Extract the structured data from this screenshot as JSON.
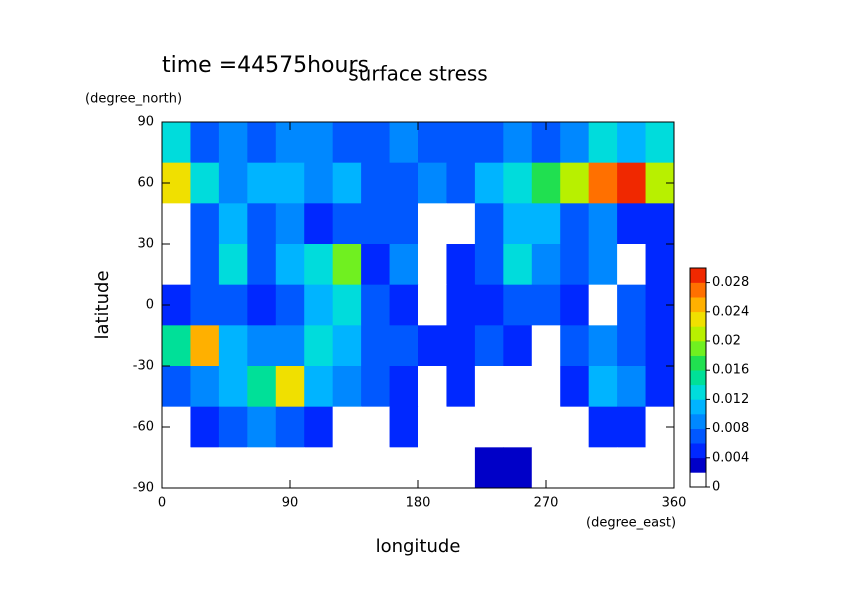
{
  "chart_data": {
    "type": "contour",
    "title": "surface stress",
    "subtitle": "time =44575hours",
    "x_label": "longitude",
    "y_label": "latitude",
    "x_unit": "(degree_east)",
    "y_unit": "(degree_north)",
    "xlim": [
      0,
      360
    ],
    "ylim": [
      -90,
      90
    ],
    "xticks": [
      0,
      90,
      180,
      270,
      360
    ],
    "yticks": [
      -90,
      -60,
      -30,
      0,
      30,
      60,
      90
    ],
    "x": [
      10,
      30,
      50,
      70,
      90,
      110,
      130,
      150,
      170,
      190,
      210,
      230,
      250,
      270,
      290,
      310,
      330,
      350
    ],
    "y": [
      80,
      60,
      40,
      20,
      0,
      -20,
      -40,
      -60,
      -80
    ],
    "z": [
      [
        0.012,
        0.006,
        0.008,
        0.006,
        0.008,
        0.008,
        0.006,
        0.006,
        0.008,
        0.006,
        0.006,
        0.006,
        0.008,
        0.006,
        0.008,
        0.012,
        0.01,
        0.012
      ],
      [
        0.022,
        0.012,
        0.008,
        0.01,
        0.01,
        0.008,
        0.01,
        0.006,
        0.006,
        0.008,
        0.006,
        0.01,
        0.012,
        0.016,
        0.02,
        0.026,
        0.028,
        0.02
      ],
      [
        0,
        0.006,
        0.01,
        0.006,
        0.008,
        0.004,
        0.006,
        0.006,
        0.006,
        0,
        0,
        0.006,
        0.01,
        0.01,
        0.006,
        0.008,
        0.004,
        0.004
      ],
      [
        0,
        0.006,
        0.012,
        0.006,
        0.01,
        0.012,
        0.018,
        0.004,
        0.008,
        0,
        0.004,
        0.006,
        0.012,
        0.008,
        0.006,
        0.008,
        0,
        0.004
      ],
      [
        0.004,
        0.006,
        0.006,
        0.004,
        0.006,
        0.01,
        0.012,
        0.006,
        0.004,
        0,
        0.004,
        0.004,
        0.006,
        0.006,
        0.004,
        0,
        0.006,
        0.004
      ],
      [
        0.014,
        0.024,
        0.01,
        0.008,
        0.008,
        0.012,
        0.01,
        0.006,
        0.006,
        0.004,
        0.004,
        0.006,
        0.004,
        0,
        0.006,
        0.008,
        0.006,
        0.004
      ],
      [
        0.006,
        0.008,
        0.01,
        0.014,
        0.022,
        0.01,
        0.008,
        0.006,
        0.004,
        0,
        0.004,
        0,
        0,
        0,
        0.004,
        0.01,
        0.008,
        0.004
      ],
      [
        0,
        0.004,
        0.006,
        0.008,
        0.006,
        0.004,
        0,
        0,
        0.004,
        0,
        0,
        0,
        0,
        0,
        0,
        0.004,
        0.004,
        0
      ],
      [
        0,
        0,
        0,
        0,
        0,
        0,
        0,
        0,
        0,
        0,
        0,
        0.002,
        0.002,
        0,
        0,
        0,
        0,
        0
      ]
    ],
    "colorbar": {
      "levels": [
        0,
        0.002,
        0.004,
        0.006,
        0.008,
        0.01,
        0.012,
        0.014,
        0.016,
        0.018,
        0.02,
        0.022,
        0.024,
        0.026,
        0.028,
        0.03
      ],
      "colors": [
        "#ffffff",
        "#0000c8",
        "#0028ff",
        "#0058ff",
        "#0088ff",
        "#00b4ff",
        "#00dcdc",
        "#00e098",
        "#20e050",
        "#70f020",
        "#b8f000",
        "#f0e000",
        "#ffb000",
        "#ff7000",
        "#f02800"
      ],
      "ticks": [
        0,
        0.004,
        0.008,
        0.012,
        0.016,
        0.02,
        0.024,
        0.028
      ]
    }
  }
}
